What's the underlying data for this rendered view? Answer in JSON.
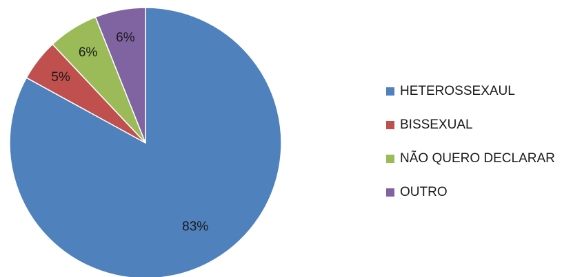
{
  "chart_data": {
    "type": "pie",
    "categories": [
      "HETEROSSEXAUL",
      "BISSEXUAL",
      "NÃO QUERO DECLARAR",
      "OUTRO"
    ],
    "values": [
      83,
      5,
      6,
      6
    ],
    "labels": [
      "83%",
      "5%",
      "6%",
      "6%"
    ],
    "colors": [
      "#4F81BD",
      "#C0504D",
      "#9BBB59",
      "#8064A2"
    ],
    "start": "12 o'clock",
    "direction": "clockwise",
    "legend_position": "right"
  }
}
